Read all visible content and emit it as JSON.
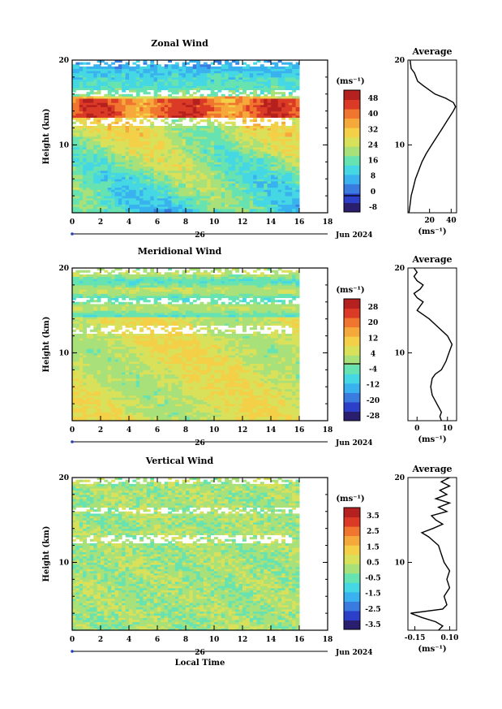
{
  "chart_data": [
    {
      "type": "heatmap",
      "title": "Zonal Wind",
      "ylabel": "Height (km)",
      "xlim": [
        0,
        18
      ],
      "ylim": [
        2,
        20
      ],
      "x_ticks": [
        "0",
        "2",
        "4",
        "6",
        "8",
        "10",
        "12",
        "14",
        "16",
        "18"
      ],
      "y_ticks": [
        "20",
        "10"
      ],
      "x_ticks_top": [
        0,
        2,
        4,
        6,
        8,
        10,
        12,
        14,
        16,
        18
      ],
      "date_label": "Jun 2024",
      "day_label": "26",
      "colorbar": {
        "label": "(ms⁻¹)",
        "ticks": [
          "48",
          "40",
          "32",
          "24",
          "16",
          "8",
          "0",
          "-8"
        ],
        "range": [
          -8,
          52
        ],
        "zero_marker": 0
      },
      "data_end_hour": 16,
      "profile": {
        "title": "Average",
        "xlabel": "(ms⁻¹)",
        "xlim": [
          0,
          45
        ],
        "x_ticks": [
          "20",
          "40"
        ],
        "points": [
          [
            1,
            2
          ],
          [
            2,
            3
          ],
          [
            3,
            4
          ],
          [
            5,
            5
          ],
          [
            7,
            6
          ],
          [
            10,
            7
          ],
          [
            13,
            8
          ],
          [
            17,
            9
          ],
          [
            22,
            10
          ],
          [
            27,
            11
          ],
          [
            32,
            12
          ],
          [
            37,
            13
          ],
          [
            42,
            14
          ],
          [
            44,
            14.5
          ],
          [
            42,
            15
          ],
          [
            35,
            15.5
          ],
          [
            25,
            16
          ],
          [
            14,
            17
          ],
          [
            9,
            17.5
          ],
          [
            6,
            18.5
          ],
          [
            3,
            19
          ],
          [
            2,
            20
          ]
        ]
      }
    },
    {
      "type": "heatmap",
      "title": "Meridional Wind",
      "ylabel": "Height (km)",
      "xlim": [
        0,
        18
      ],
      "ylim": [
        2,
        20
      ],
      "x_ticks": [
        "0",
        "2",
        "4",
        "6",
        "8",
        "10",
        "12",
        "14",
        "16",
        "18"
      ],
      "y_ticks": [
        "20",
        "10"
      ],
      "date_label": "Jun 2024",
      "day_label": "26",
      "colorbar": {
        "label": "(ms⁻¹)",
        "ticks": [
          "28",
          "20",
          "12",
          "4",
          "-4",
          "-12",
          "-20",
          "-28"
        ],
        "range": [
          -28,
          32
        ],
        "zero_marker": 0
      },
      "data_end_hour": 16,
      "profile": {
        "title": "Average",
        "xlabel": "(ms⁻¹)",
        "xlim": [
          -3,
          13
        ],
        "x_ticks": [
          "0",
          "10"
        ],
        "points": [
          [
            8,
            2
          ],
          [
            7.5,
            2.5
          ],
          [
            8,
            3
          ],
          [
            6.5,
            4
          ],
          [
            5,
            5
          ],
          [
            4.5,
            6
          ],
          [
            5,
            7
          ],
          [
            6,
            7.5
          ],
          [
            8,
            8
          ],
          [
            9.5,
            9
          ],
          [
            10.5,
            10
          ],
          [
            11.5,
            11
          ],
          [
            10,
            12
          ],
          [
            7,
            13
          ],
          [
            4,
            14
          ],
          [
            2,
            14.5
          ],
          [
            0,
            15
          ],
          [
            1,
            15.5
          ],
          [
            2,
            16
          ],
          [
            0,
            16.5
          ],
          [
            -1,
            17
          ],
          [
            1,
            17.5
          ],
          [
            2,
            18
          ],
          [
            0,
            18.5
          ],
          [
            -1,
            19
          ],
          [
            0,
            19.5
          ],
          [
            -1,
            20
          ]
        ]
      }
    },
    {
      "type": "heatmap",
      "title": "Vertical Wind",
      "ylabel": "Height (km)",
      "xlabel": "Local Time",
      "xlim": [
        0,
        18
      ],
      "ylim": [
        2,
        20
      ],
      "x_ticks": [
        "0",
        "2",
        "4",
        "6",
        "8",
        "10",
        "12",
        "14",
        "16",
        "18"
      ],
      "y_ticks": [
        "20",
        "10"
      ],
      "date_label": "Jun 2024",
      "day_label": "26",
      "colorbar": {
        "label": "(ms⁻¹)",
        "ticks": [
          "3.5",
          "2.5",
          "1.5",
          "0.5",
          "-0.5",
          "-1.5",
          "-2.5",
          "-3.5"
        ],
        "range": [
          -4,
          4
        ]
      },
      "data_end_hour": 16,
      "profile": {
        "title": "Average",
        "xlabel": "(ms⁻¹)",
        "xlim": [
          -0.2,
          0.15
        ],
        "x_ticks": [
          "-0.15",
          "0.10"
        ],
        "points": [
          [
            0.02,
            2
          ],
          [
            0.05,
            2.5
          ],
          [
            0.0,
            3
          ],
          [
            -0.1,
            3.5
          ],
          [
            -0.18,
            4
          ],
          [
            0.05,
            4.5
          ],
          [
            0.08,
            5
          ],
          [
            0.06,
            6
          ],
          [
            0.1,
            7
          ],
          [
            0.08,
            8
          ],
          [
            0.1,
            9
          ],
          [
            0.06,
            10
          ],
          [
            0.04,
            11
          ],
          [
            0.02,
            12
          ],
          [
            -0.05,
            13
          ],
          [
            -0.1,
            13.5
          ],
          [
            -0.02,
            14
          ],
          [
            0.05,
            14.5
          ],
          [
            0.0,
            15
          ],
          [
            -0.03,
            15.5
          ],
          [
            0.08,
            16
          ],
          [
            0.02,
            16.5
          ],
          [
            0.1,
            17
          ],
          [
            0.0,
            17.5
          ],
          [
            0.08,
            18
          ],
          [
            0.03,
            18.5
          ],
          [
            0.1,
            19
          ],
          [
            0.04,
            19.5
          ],
          [
            0.1,
            20
          ]
        ]
      }
    }
  ],
  "colors": {
    "scale": [
      "#2a1e6e",
      "#2c3fc8",
      "#3a7be0",
      "#39b2ef",
      "#45d7e4",
      "#66e3b0",
      "#a8e07a",
      "#d9e15a",
      "#f3d047",
      "#f6a93b",
      "#f0752e",
      "#db3a26",
      "#b5211e"
    ]
  }
}
